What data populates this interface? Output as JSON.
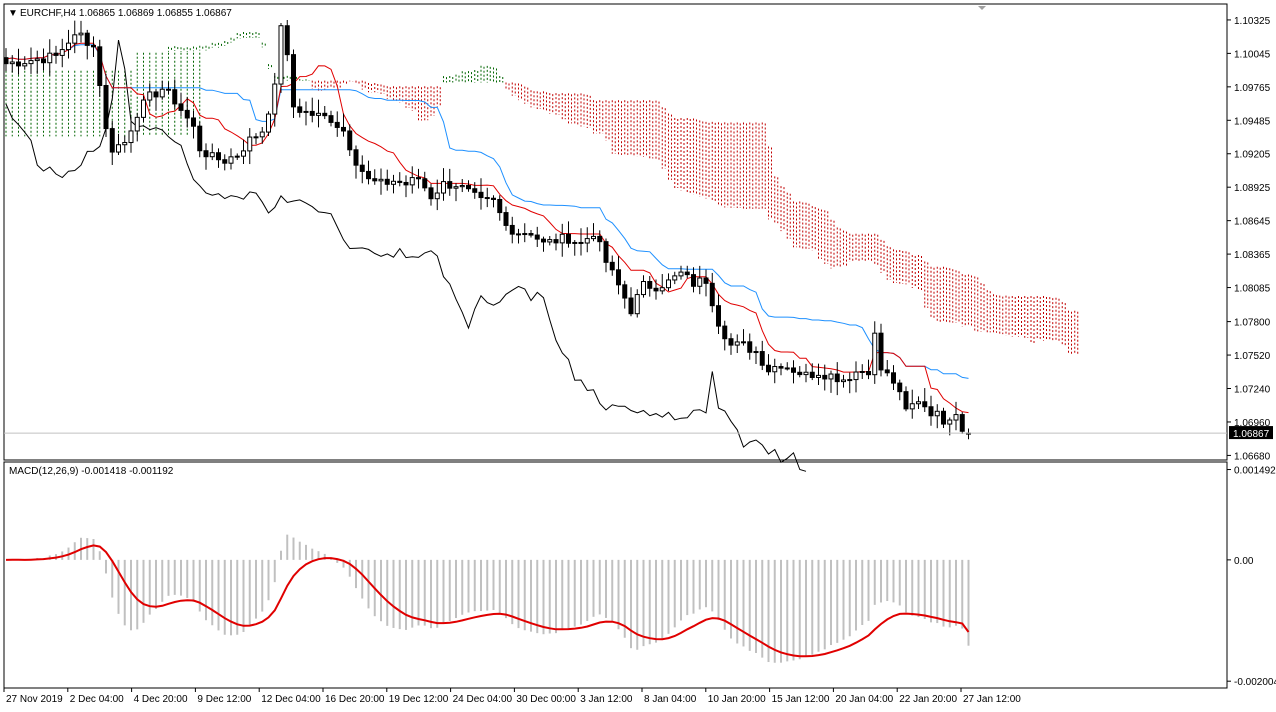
{
  "header": {
    "symbol_line": "EURCHF,H4  1.06865 1.06869 1.06855 1.06867",
    "dropdown_glyph": "▼"
  },
  "macd_header": "MACD(12,26,9) -0.001418 -0.001192",
  "price_axis": {
    "ticks": [
      "1.10325",
      "1.10045",
      "1.09765",
      "1.09485",
      "1.09205",
      "1.08925",
      "1.08645",
      "1.08365",
      "1.08085",
      "1.07800",
      "1.07520",
      "1.07240",
      "1.06960",
      "1.06680"
    ],
    "tick_values": [
      1.10325,
      1.10045,
      1.09765,
      1.09485,
      1.09205,
      1.08925,
      1.08645,
      1.08365,
      1.08085,
      1.078,
      1.0752,
      1.0724,
      1.0696,
      1.0668
    ],
    "current_price": "1.06867",
    "current_value": 1.06867
  },
  "macd_axis": {
    "ticks": [
      "0.001492",
      "0.00",
      "-0.002004"
    ],
    "tick_values": [
      0.001492,
      0.0,
      -0.002004
    ]
  },
  "time_axis": [
    "27 Nov 2019",
    "2 Dec 04:00",
    "4 Dec 20:00",
    "9 Dec 12:00",
    "12 Dec 04:00",
    "16 Dec 20:00",
    "19 Dec 12:00",
    "24 Dec 04:00",
    "30 Dec 00:00",
    "3 Jan 12:00",
    "8 Jan 04:00",
    "10 Jan 20:00",
    "15 Jan 12:00",
    "20 Jan 04:00",
    "22 Jan 20:00",
    "27 Jan 12:00"
  ],
  "colors": {
    "background": "#ffffff",
    "candle": "#000000",
    "tenkan": "#e00000",
    "kijun": "#1e90ff",
    "chikou": "#000000",
    "kumo_bull": "#006400",
    "kumo_bear": "#c00000",
    "macd_hist": "#c0c0c0",
    "macd_signal": "#e00000"
  },
  "chart_data": [
    {
      "type": "candlestick",
      "title": "EURCHF,H4",
      "ohlc_last": {
        "open": 1.06865,
        "high": 1.06869,
        "low": 1.06855,
        "close": 1.06867
      },
      "ylim": [
        1.0665,
        1.1045
      ],
      "overlays": [
        "Ichimoku tenkan-sen",
        "Ichimoku kijun-sen",
        "Ichimoku chikou span",
        "Ichimoku kumo cloud"
      ],
      "close_path": [
        [
          0,
          1.0996
        ],
        [
          4,
          1.0999
        ],
        [
          8,
          1.1002
        ],
        [
          10,
          1.1015
        ],
        [
          12,
          1.102
        ],
        [
          14,
          1.101
        ],
        [
          15,
          1.098
        ],
        [
          16,
          1.094
        ],
        [
          17,
          1.0925
        ],
        [
          19,
          1.093
        ],
        [
          21,
          1.0955
        ],
        [
          23,
          1.0968
        ],
        [
          25,
          1.0975
        ],
        [
          27,
          1.0965
        ],
        [
          29,
          1.095
        ],
        [
          30,
          1.0942
        ],
        [
          31,
          1.0925
        ],
        [
          33,
          1.0917
        ],
        [
          35,
          1.0915
        ],
        [
          37,
          1.092
        ],
        [
          39,
          1.0932
        ],
        [
          41,
          1.094
        ],
        [
          43,
          1.0975
        ],
        [
          44,
          1.103
        ],
        [
          45,
          1.1
        ],
        [
          46,
          1.096
        ],
        [
          48,
          1.0955
        ],
        [
          50,
          1.0952
        ],
        [
          52,
          1.095
        ],
        [
          54,
          1.094
        ],
        [
          56,
          1.0915
        ],
        [
          58,
          1.0898
        ],
        [
          60,
          1.0895
        ],
        [
          62,
          1.0898
        ],
        [
          64,
          1.0895
        ],
        [
          66,
          1.09
        ],
        [
          68,
          1.0885
        ],
        [
          70,
          1.0895
        ],
        [
          72,
          1.0895
        ],
        [
          74,
          1.0888
        ],
        [
          76,
          1.088
        ],
        [
          78,
          1.088
        ],
        [
          80,
          1.086
        ],
        [
          82,
          1.0855
        ],
        [
          84,
          1.0855
        ],
        [
          86,
          1.0845
        ],
        [
          88,
          1.0848
        ],
        [
          90,
          1.085
        ],
        [
          92,
          1.0845
        ],
        [
          94,
          1.0855
        ],
        [
          96,
          1.083
        ],
        [
          98,
          1.081
        ],
        [
          100,
          1.079
        ],
        [
          102,
          1.081
        ],
        [
          104,
          1.081
        ],
        [
          106,
          1.0813
        ],
        [
          108,
          1.082
        ],
        [
          110,
          1.0812
        ],
        [
          112,
          1.0815
        ],
        [
          114,
          1.078
        ],
        [
          116,
          1.076
        ],
        [
          118,
          1.076
        ],
        [
          120,
          1.0755
        ],
        [
          122,
          1.074
        ],
        [
          124,
          1.0745
        ],
        [
          126,
          1.074
        ],
        [
          128,
          1.0735
        ],
        [
          130,
          1.0738
        ],
        [
          132,
          1.0735
        ],
        [
          134,
          1.0732
        ],
        [
          136,
          1.0738
        ],
        [
          138,
          1.074
        ],
        [
          139,
          1.0768
        ],
        [
          140,
          1.074
        ],
        [
          142,
          1.073
        ],
        [
          144,
          1.0705
        ],
        [
          146,
          1.0715
        ],
        [
          148,
          1.0705
        ],
        [
          150,
          1.0698
        ],
        [
          152,
          1.0705
        ],
        [
          153,
          1.069
        ],
        [
          154,
          1.0686
        ]
      ]
    },
    {
      "type": "bar",
      "title": "MACD(12,26,9)",
      "macd": -0.001418,
      "signal": -0.001192,
      "ylim": [
        -0.0021,
        0.0016
      ]
    }
  ]
}
